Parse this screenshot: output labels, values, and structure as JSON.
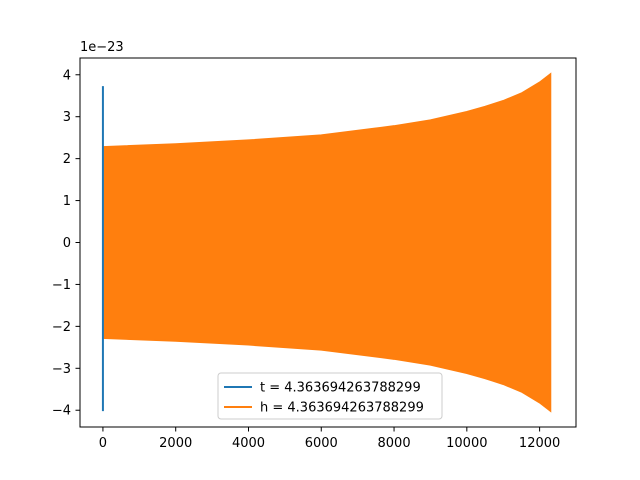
{
  "chart_data": {
    "type": "line",
    "title": "",
    "xlabel": "",
    "ylabel": "",
    "y_offset_label": "1e−23",
    "xlim": [
      -630,
      13000
    ],
    "ylim": [
      -4.4,
      4.4
    ],
    "x_ticks": [
      {
        "value": 0,
        "label": "0"
      },
      {
        "value": 2000,
        "label": "2000"
      },
      {
        "value": 4000,
        "label": "4000"
      },
      {
        "value": 6000,
        "label": "6000"
      },
      {
        "value": 8000,
        "label": "8000"
      },
      {
        "value": 10000,
        "label": "10000"
      },
      {
        "value": 12000,
        "label": "12000"
      }
    ],
    "y_ticks": [
      {
        "value": -4,
        "label": "−4"
      },
      {
        "value": -3,
        "label": "−3"
      },
      {
        "value": -2,
        "label": "−2"
      },
      {
        "value": -1,
        "label": "−1"
      },
      {
        "value": 0,
        "label": "0"
      },
      {
        "value": 1,
        "label": "1"
      },
      {
        "value": 2,
        "label": "2"
      },
      {
        "value": 3,
        "label": "3"
      },
      {
        "value": 4,
        "label": "4"
      }
    ],
    "grid": false,
    "legend_position": "lower center",
    "series": [
      {
        "name": "t = 4.363694263788299",
        "color": "#1f77b4",
        "render": "oscillation",
        "x": [
          0,
          0,
          0
        ],
        "upper": [
          3.73,
          3.73,
          3.73
        ],
        "lower": [
          -4.02,
          -4.02,
          -4.02
        ]
      },
      {
        "name": "h = 4.363694263788299",
        "color": "#ff7f0e",
        "render": "oscillation",
        "x": [
          0,
          2000,
          4000,
          6000,
          8000,
          9000,
          10000,
          10500,
          11000,
          11500,
          12000,
          12300
        ],
        "upper": [
          2.28,
          2.35,
          2.44,
          2.56,
          2.78,
          2.92,
          3.12,
          3.24,
          3.38,
          3.56,
          3.82,
          4.02
        ],
        "lower": [
          -2.28,
          -2.35,
          -2.44,
          -2.56,
          -2.78,
          -2.92,
          -3.12,
          -3.24,
          -3.38,
          -3.56,
          -3.82,
          -4.02
        ]
      }
    ]
  }
}
